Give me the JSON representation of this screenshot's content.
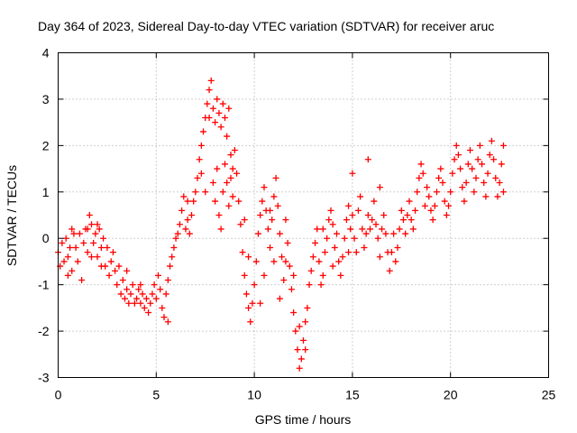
{
  "chart_data": {
    "type": "scatter",
    "title": "Day 364 of 2023, Sidereal Day-to-day VTEC variation (SDTVAR) for receiver aruc",
    "xlabel": "GPS time / hours",
    "ylabel": "SDTVAR / TECUs",
    "xlim": [
      0,
      25
    ],
    "ylim": [
      -3,
      4
    ],
    "xticks": [
      0,
      5,
      10,
      15,
      20,
      25
    ],
    "yticks": [
      -3,
      -2,
      -1,
      0,
      1,
      2,
      3,
      4
    ],
    "grid": true,
    "marker": "+",
    "series": [
      {
        "name": "SDTVAR",
        "color": "#ff0000",
        "points": [
          [
            0.0,
            -0.3
          ],
          [
            0.1,
            -0.6
          ],
          [
            0.2,
            -0.1
          ],
          [
            0.3,
            -0.5
          ],
          [
            0.4,
            0.0
          ],
          [
            0.5,
            -0.4
          ],
          [
            0.6,
            -0.2
          ],
          [
            0.7,
            -0.7
          ],
          [
            0.8,
            0.1
          ],
          [
            0.9,
            -0.2
          ],
          [
            1.0,
            -0.5
          ],
          [
            1.1,
            0.1
          ],
          [
            1.2,
            -0.9
          ],
          [
            1.3,
            -0.1
          ],
          [
            1.4,
            0.2
          ],
          [
            1.5,
            -0.3
          ],
          [
            1.6,
            0.5
          ],
          [
            1.7,
            0.3
          ],
          [
            1.8,
            -0.1
          ],
          [
            1.9,
            0.1
          ],
          [
            2.0,
            -0.4
          ],
          [
            2.1,
            0.2
          ],
          [
            2.2,
            -0.2
          ],
          [
            2.3,
            0.0
          ],
          [
            2.4,
            -0.6
          ],
          [
            2.5,
            -0.2
          ],
          [
            2.6,
            -0.8
          ],
          [
            2.7,
            -0.5
          ],
          [
            2.8,
            -0.3
          ],
          [
            2.9,
            -0.7
          ],
          [
            3.0,
            -1.0
          ],
          [
            3.1,
            -0.6
          ],
          [
            3.2,
            -1.2
          ],
          [
            3.3,
            -0.9
          ],
          [
            3.4,
            -1.3
          ],
          [
            3.5,
            -1.1
          ],
          [
            3.6,
            -1.4
          ],
          [
            3.7,
            -1.2
          ],
          [
            3.8,
            -1.0
          ],
          [
            3.9,
            -1.4
          ],
          [
            4.0,
            -1.3
          ],
          [
            4.1,
            -1.1
          ],
          [
            4.2,
            -1.4
          ],
          [
            4.3,
            -1.2
          ],
          [
            4.4,
            -1.5
          ],
          [
            4.5,
            -1.3
          ],
          [
            4.6,
            -1.6
          ],
          [
            4.7,
            -1.4
          ],
          [
            4.8,
            -1.2
          ],
          [
            4.9,
            -1.0
          ],
          [
            5.0,
            -1.3
          ],
          [
            5.1,
            -0.8
          ],
          [
            5.2,
            -1.1
          ],
          [
            5.3,
            -1.5
          ],
          [
            5.4,
            -1.7
          ],
          [
            5.5,
            -1.2
          ],
          [
            5.6,
            -0.9
          ],
          [
            5.7,
            -0.6
          ],
          [
            5.8,
            -0.4
          ],
          [
            5.9,
            -0.2
          ],
          [
            6.0,
            0.0
          ],
          [
            6.1,
            0.1
          ],
          [
            6.2,
            0.3
          ],
          [
            6.3,
            0.6
          ],
          [
            6.4,
            0.9
          ],
          [
            6.5,
            0.2
          ],
          [
            6.6,
            0.4
          ],
          [
            6.7,
            0.1
          ],
          [
            6.8,
            0.5
          ],
          [
            6.9,
            0.8
          ],
          [
            7.0,
            1.0
          ],
          [
            7.1,
            1.3
          ],
          [
            7.2,
            1.7
          ],
          [
            7.3,
            2.0
          ],
          [
            7.4,
            2.3
          ],
          [
            7.5,
            2.6
          ],
          [
            7.6,
            2.9
          ],
          [
            7.7,
            3.2
          ],
          [
            7.8,
            3.4
          ],
          [
            7.9,
            2.8
          ],
          [
            8.0,
            2.5
          ],
          [
            8.1,
            3.0
          ],
          [
            8.2,
            2.7
          ],
          [
            8.3,
            2.4
          ],
          [
            8.4,
            2.9
          ],
          [
            8.5,
            2.6
          ],
          [
            8.6,
            2.2
          ],
          [
            8.7,
            2.8
          ],
          [
            8.8,
            1.8
          ],
          [
            8.9,
            1.5
          ],
          [
            7.9,
            1.2
          ],
          [
            8.0,
            0.8
          ],
          [
            8.1,
            1.5
          ],
          [
            8.2,
            0.5
          ],
          [
            8.3,
            0.2
          ],
          [
            8.4,
            1.0
          ],
          [
            8.5,
            1.6
          ],
          [
            8.6,
            1.2
          ],
          [
            8.7,
            0.7
          ],
          [
            8.8,
            1.3
          ],
          [
            8.9,
            0.9
          ],
          [
            9.0,
            1.9
          ],
          [
            9.1,
            1.4
          ],
          [
            9.2,
            0.8
          ],
          [
            9.3,
            0.3
          ],
          [
            9.4,
            -0.3
          ],
          [
            9.5,
            -0.8
          ],
          [
            9.6,
            -1.2
          ],
          [
            9.7,
            -1.5
          ],
          [
            9.8,
            -1.8
          ],
          [
            9.9,
            -1.4
          ],
          [
            10.0,
            -1.0
          ],
          [
            10.1,
            -0.5
          ],
          [
            10.2,
            0.1
          ],
          [
            10.3,
            0.5
          ],
          [
            10.4,
            0.8
          ],
          [
            10.5,
            1.1
          ],
          [
            10.6,
            0.6
          ],
          [
            10.7,
            0.2
          ],
          [
            10.8,
            -0.2
          ],
          [
            10.9,
            0.4
          ],
          [
            11.0,
            0.9
          ],
          [
            11.1,
            1.3
          ],
          [
            11.2,
            0.7
          ],
          [
            11.3,
            0.1
          ],
          [
            11.4,
            -0.4
          ],
          [
            11.5,
            -0.9
          ],
          [
            11.6,
            -0.5
          ],
          [
            11.7,
            -0.1
          ],
          [
            11.8,
            -0.6
          ],
          [
            11.9,
            -1.1
          ],
          [
            12.0,
            -1.6
          ],
          [
            12.1,
            -2.0
          ],
          [
            12.2,
            -2.4
          ],
          [
            12.3,
            -2.8
          ],
          [
            12.4,
            -2.6
          ],
          [
            12.5,
            -2.2
          ],
          [
            12.6,
            -1.8
          ],
          [
            12.7,
            -1.5
          ],
          [
            12.8,
            -1.0
          ],
          [
            12.9,
            -0.7
          ],
          [
            13.0,
            -0.4
          ],
          [
            13.1,
            -0.1
          ],
          [
            13.2,
            0.2
          ],
          [
            13.3,
            -0.5
          ],
          [
            13.4,
            -1.0
          ],
          [
            13.5,
            -0.8
          ],
          [
            13.6,
            -0.3
          ],
          [
            13.7,
            0.0
          ],
          [
            13.8,
            0.4
          ],
          [
            13.9,
            0.6
          ],
          [
            14.0,
            0.3
          ],
          [
            14.1,
            -0.2
          ],
          [
            14.2,
            0.1
          ],
          [
            14.3,
            -0.5
          ],
          [
            14.4,
            -0.8
          ],
          [
            14.5,
            -0.4
          ],
          [
            14.6,
            0.0
          ],
          [
            14.7,
            0.4
          ],
          [
            14.8,
            0.7
          ],
          [
            14.9,
            0.2
          ],
          [
            15.0,
            0.5
          ],
          [
            15.1,
            0.0
          ],
          [
            15.2,
            -0.3
          ],
          [
            15.3,
            0.6
          ],
          [
            15.4,
            0.9
          ],
          [
            15.5,
            0.2
          ],
          [
            15.6,
            -0.2
          ],
          [
            15.7,
            0.1
          ],
          [
            15.8,
            0.5
          ],
          [
            15.9,
            0.2
          ],
          [
            16.0,
            0.4
          ],
          [
            16.1,
            0.8
          ],
          [
            16.2,
            0.3
          ],
          [
            16.3,
            0.0
          ],
          [
            16.4,
            -0.4
          ],
          [
            16.5,
            0.2
          ],
          [
            16.6,
            0.5
          ],
          [
            16.7,
            0.1
          ],
          [
            16.8,
            -0.3
          ],
          [
            16.9,
            -0.7
          ],
          [
            17.0,
            -0.3
          ],
          [
            17.1,
            0.1
          ],
          [
            17.2,
            -0.5
          ],
          [
            17.3,
            -0.2
          ],
          [
            17.4,
            0.2
          ],
          [
            17.5,
            0.6
          ],
          [
            17.6,
            0.4
          ],
          [
            17.7,
            0.1
          ],
          [
            17.8,
            0.5
          ],
          [
            17.9,
            0.8
          ],
          [
            18.0,
            0.4
          ],
          [
            18.1,
            0.2
          ],
          [
            18.2,
            0.6
          ],
          [
            18.3,
            1.0
          ],
          [
            18.4,
            1.3
          ],
          [
            18.5,
            1.6
          ],
          [
            18.6,
            1.4
          ],
          [
            18.7,
            0.7
          ],
          [
            18.8,
            1.1
          ],
          [
            18.9,
            0.9
          ],
          [
            19.0,
            0.6
          ],
          [
            19.1,
            0.4
          ],
          [
            19.2,
            0.7
          ],
          [
            19.3,
            1.0
          ],
          [
            19.4,
            1.3
          ],
          [
            19.5,
            1.5
          ],
          [
            19.6,
            1.2
          ],
          [
            19.7,
            0.8
          ],
          [
            19.8,
            0.5
          ],
          [
            19.9,
            0.7
          ],
          [
            20.0,
            1.0
          ],
          [
            20.1,
            1.4
          ],
          [
            20.2,
            1.7
          ],
          [
            20.3,
            2.0
          ],
          [
            20.4,
            1.8
          ],
          [
            20.5,
            1.5
          ],
          [
            20.6,
            1.1
          ],
          [
            20.7,
            0.8
          ],
          [
            20.8,
            1.2
          ],
          [
            20.9,
            1.6
          ],
          [
            21.0,
            1.9
          ],
          [
            21.1,
            1.5
          ],
          [
            21.2,
            1.0
          ],
          [
            21.3,
            1.3
          ],
          [
            21.4,
            1.7
          ],
          [
            21.5,
            2.0
          ],
          [
            21.6,
            1.6
          ],
          [
            21.7,
            1.2
          ],
          [
            21.8,
            0.9
          ],
          [
            21.9,
            1.4
          ],
          [
            22.0,
            1.8
          ],
          [
            22.1,
            2.1
          ],
          [
            22.2,
            1.7
          ],
          [
            22.3,
            1.3
          ],
          [
            22.4,
            0.9
          ],
          [
            22.5,
            1.2
          ],
          [
            22.6,
            1.6
          ],
          [
            22.7,
            2.0
          ],
          [
            22.7,
            1.0
          ],
          [
            1.5,
            0.2
          ],
          [
            1.7,
            -0.4
          ],
          [
            2.0,
            0.3
          ],
          [
            2.2,
            -0.6
          ],
          [
            0.5,
            -0.8
          ],
          [
            0.7,
            0.2
          ],
          [
            3.5,
            -0.7
          ],
          [
            4.2,
            -1.0
          ],
          [
            5.6,
            -1.8
          ],
          [
            6.6,
            0.8
          ],
          [
            7.3,
            1.4
          ],
          [
            7.5,
            1.0
          ],
          [
            7.7,
            2.6
          ],
          [
            9.5,
            0.4
          ],
          [
            9.7,
            -0.4
          ],
          [
            10.3,
            -1.4
          ],
          [
            10.5,
            -0.8
          ],
          [
            10.8,
            0.6
          ],
          [
            11.0,
            -0.5
          ],
          [
            11.3,
            -1.3
          ],
          [
            11.6,
            0.4
          ],
          [
            12.0,
            -0.8
          ],
          [
            12.3,
            -1.9
          ],
          [
            12.6,
            -2.4
          ],
          [
            13.5,
            0.2
          ],
          [
            14.0,
            -0.6
          ],
          [
            14.8,
            -0.3
          ],
          [
            15.0,
            1.4
          ],
          [
            15.8,
            1.7
          ],
          [
            16.4,
            1.1
          ]
        ]
      }
    ]
  }
}
